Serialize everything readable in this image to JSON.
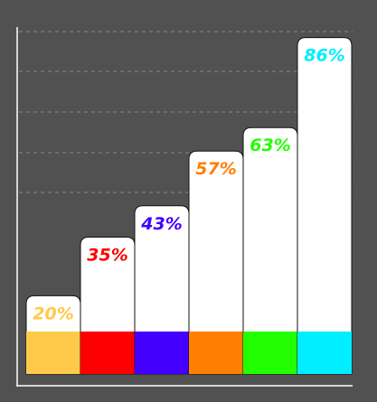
{
  "chart_data": {
    "type": "bar",
    "title": "",
    "xlabel": "",
    "ylabel": "",
    "categories": [
      "",
      "",
      "",
      "",
      "",
      ""
    ],
    "values": [
      20,
      35,
      43,
      57,
      63,
      86
    ],
    "labels": [
      "20%",
      "35%",
      "43%",
      "57%",
      "63%",
      "86%"
    ],
    "colors": [
      "#ffc94a",
      "#ff0000",
      "#4400ff",
      "#ff7f00",
      "#22ff00",
      "#00eeff"
    ],
    "grid": true,
    "legend": "none"
  }
}
